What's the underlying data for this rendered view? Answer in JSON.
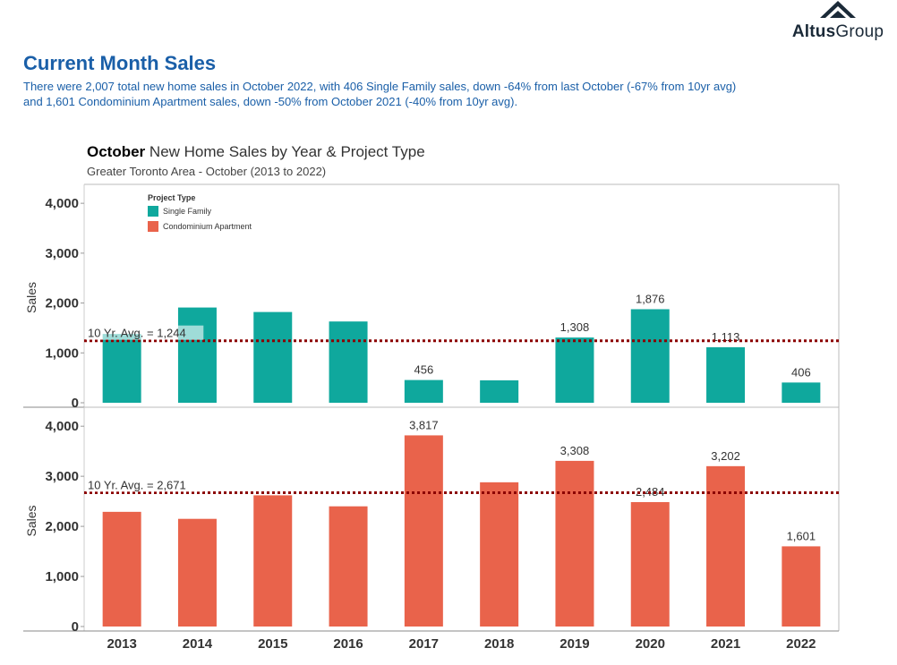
{
  "logo": {
    "text_a": "Altus",
    "text_b": "Group"
  },
  "page": {
    "title": "Current Month Sales",
    "summary": "There were 2,007 total new home sales in October 2022, with 406 Single Family sales, down -64% from last October (-67% from 10yr avg) and 1,601 Condominium Apartment sales, down -50% from October 2021 (-40% from 10yr avg)."
  },
  "chart_data": {
    "type": "bar",
    "title_bold": "October",
    "title_rest": " New Home Sales by Year & Project Type",
    "subtitle": "Greater Toronto Area - October (2013 to 2022)",
    "categories": [
      "2013",
      "2014",
      "2015",
      "2016",
      "2017",
      "2018",
      "2019",
      "2020",
      "2021",
      "2022"
    ],
    "ylabel": "Sales",
    "ylim": [
      0,
      4200
    ],
    "yticks": [
      0,
      1000,
      2000,
      3000,
      4000
    ],
    "ytick_labels": [
      "0",
      "1,000",
      "2,000",
      "3,000",
      "4,000"
    ],
    "legend": {
      "title": "Project Type",
      "placement": "top-left"
    },
    "series": [
      {
        "name": "Single Family",
        "color": "#0fa89d",
        "values": [
          1380,
          1910,
          1820,
          1630,
          456,
          450,
          1308,
          1876,
          1113,
          406
        ],
        "labels": [
          "",
          "",
          "",
          "",
          "456",
          "",
          "1,308",
          "1,876",
          "1,113",
          "406"
        ],
        "avg_value": 1244,
        "avg_label": "10 Yr. Avg. = 1,244"
      },
      {
        "name": "Condominium Apartment",
        "color": "#e9634b",
        "values": [
          2290,
          2150,
          2620,
          2400,
          3817,
          2880,
          3308,
          2484,
          3202,
          1601
        ],
        "labels": [
          "",
          "",
          "",
          "",
          "3,817",
          "",
          "3,308",
          "2,484",
          "3,202",
          "1,601"
        ],
        "avg_value": 2671,
        "avg_label": "10 Yr. Avg. = 2,671"
      }
    ],
    "avg_line_color": "#8b0000"
  }
}
